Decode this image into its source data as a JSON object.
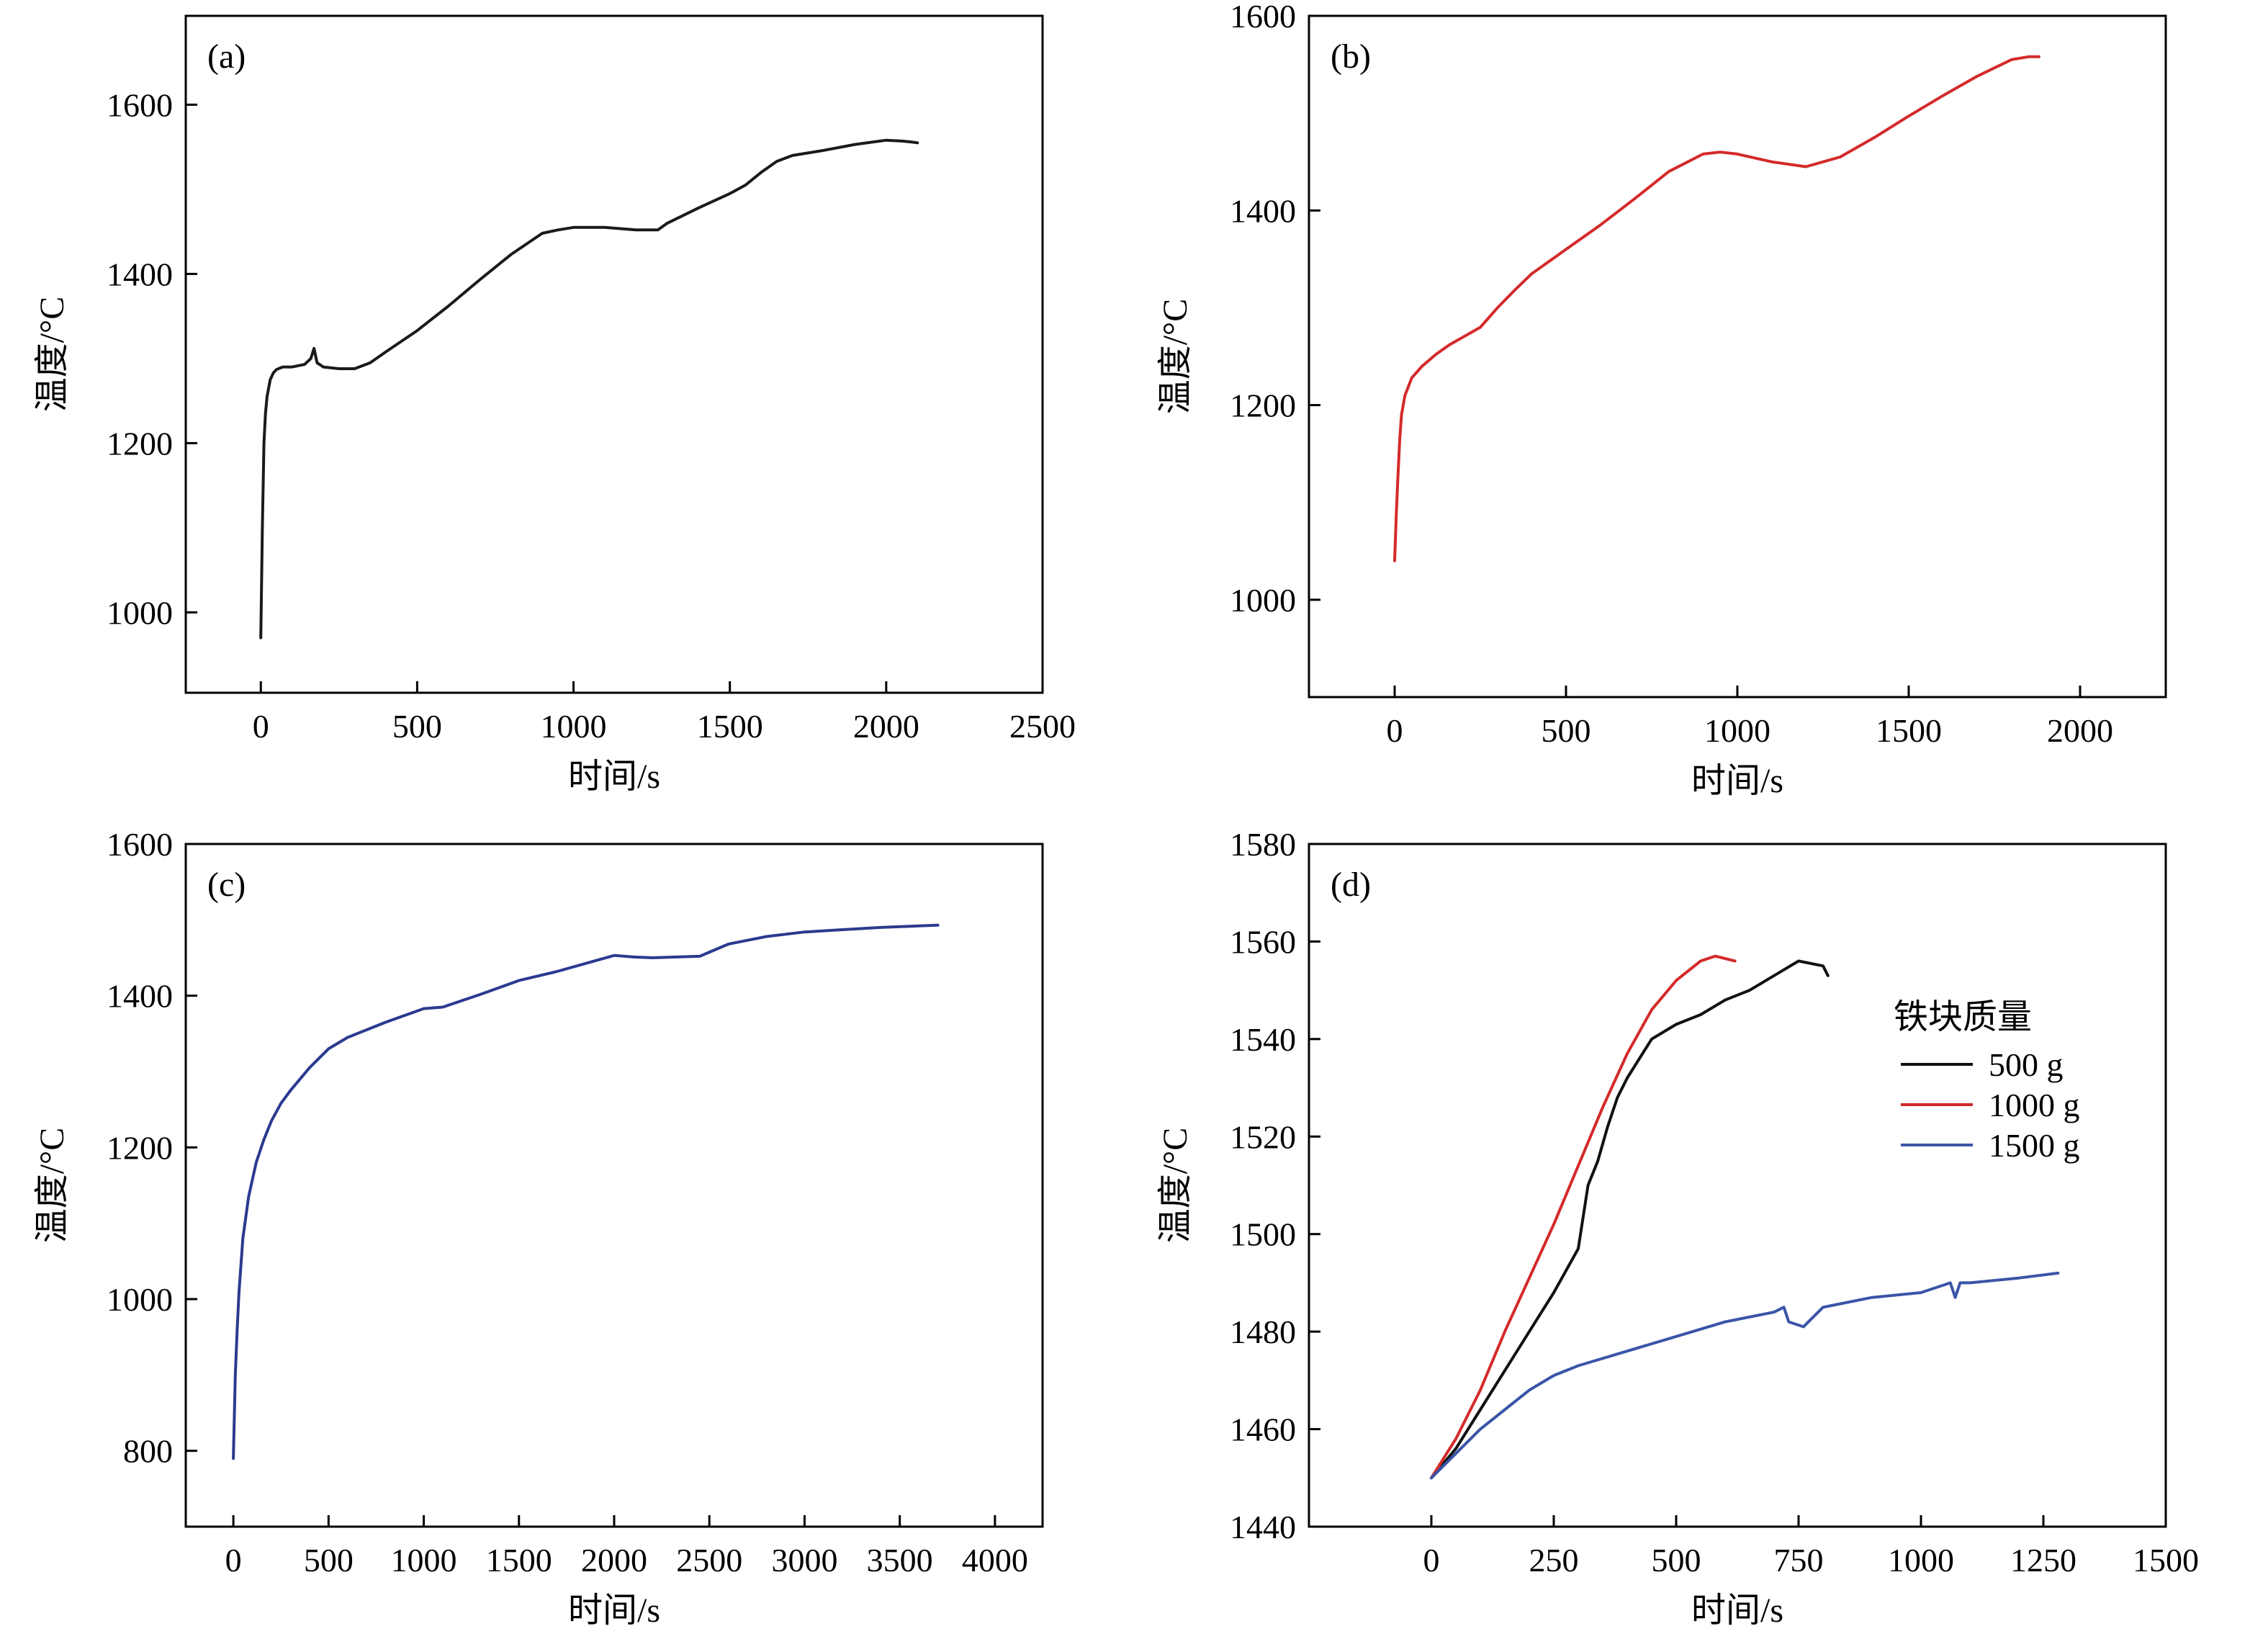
{
  "chart_data": [
    {
      "panel": "(a)",
      "type": "line",
      "xlabel": "时间/s",
      "ylabel": "温度/°C",
      "xlim": [
        -240,
        2500
      ],
      "ylim": [
        905,
        1705
      ],
      "xticks": [
        0,
        500,
        1000,
        1500,
        2000,
        2500
      ],
      "yticks": [
        1000,
        1200,
        1400,
        1600
      ],
      "series": [
        {
          "color": "#1a1a1a",
          "x": [
            0,
            5,
            10,
            15,
            20,
            30,
            40,
            50,
            70,
            100,
            140,
            160,
            170,
            180,
            200,
            250,
            300,
            350,
            400,
            500,
            600,
            700,
            800,
            900,
            950,
            1000,
            1100,
            1200,
            1270,
            1300,
            1400,
            1500,
            1550,
            1600,
            1650,
            1700,
            1800,
            1900,
            2000,
            2050,
            2080,
            2100
          ],
          "y": [
            970,
            1100,
            1200,
            1235,
            1255,
            1275,
            1283,
            1287,
            1290,
            1290,
            1293,
            1300,
            1312,
            1295,
            1290,
            1288,
            1288,
            1295,
            1308,
            1333,
            1362,
            1393,
            1423,
            1448,
            1452,
            1455,
            1455,
            1452,
            1452,
            1460,
            1478,
            1495,
            1505,
            1520,
            1533,
            1540,
            1546,
            1553,
            1558,
            1557,
            1556,
            1555
          ]
        }
      ]
    },
    {
      "panel": "(b)",
      "type": "line",
      "xlabel": "时间/s",
      "ylabel": "温度/°C",
      "xlim": [
        -250,
        2250
      ],
      "ylim": [
        900,
        1600
      ],
      "xticks": [
        0,
        500,
        1000,
        1500,
        2000
      ],
      "yticks": [
        1000,
        1200,
        1400,
        1600
      ],
      "series": [
        {
          "color": "#d42a2a",
          "x": [
            0,
            5,
            10,
            15,
            20,
            30,
            50,
            80,
            120,
            160,
            200,
            250,
            300,
            350,
            400,
            500,
            600,
            700,
            800,
            900,
            950,
            1000,
            1100,
            1200,
            1300,
            1400,
            1500,
            1600,
            1700,
            1800,
            1850,
            1880
          ],
          "y": [
            1040,
            1090,
            1130,
            1165,
            1190,
            1210,
            1228,
            1240,
            1252,
            1262,
            1270,
            1280,
            1300,
            1318,
            1335,
            1360,
            1385,
            1412,
            1440,
            1458,
            1460,
            1458,
            1450,
            1445,
            1455,
            1475,
            1497,
            1518,
            1538,
            1555,
            1558,
            1558
          ]
        }
      ]
    },
    {
      "panel": "(c)",
      "type": "line",
      "xlabel": "时间/s",
      "ylabel": "温度/°C",
      "xlim": [
        -250,
        4250
      ],
      "ylim": [
        700,
        1600
      ],
      "xticks": [
        0,
        500,
        1000,
        1500,
        2000,
        2500,
        3000,
        3500,
        4000
      ],
      "yticks": [
        800,
        1000,
        1200,
        1400,
        1600
      ],
      "series": [
        {
          "color": "#2b3a8f",
          "x": [
            0,
            10,
            20,
            30,
            50,
            80,
            120,
            160,
            200,
            250,
            300,
            400,
            500,
            600,
            800,
            1000,
            1100,
            1300,
            1500,
            1700,
            1900,
            2000,
            2100,
            2200,
            2450,
            2600,
            2800,
            3000,
            3200,
            3400,
            3600,
            3700
          ],
          "y": [
            790,
            900,
            960,
            1010,
            1080,
            1135,
            1180,
            1210,
            1235,
            1258,
            1275,
            1305,
            1330,
            1345,
            1365,
            1383,
            1385,
            1402,
            1420,
            1432,
            1446,
            1453,
            1451,
            1450,
            1452,
            1468,
            1478,
            1484,
            1487,
            1490,
            1492,
            1493
          ]
        }
      ]
    },
    {
      "panel": "(d)",
      "type": "line",
      "xlabel": "时间/s",
      "ylabel": "温度/°C",
      "xlim": [
        -250,
        1500
      ],
      "ylim": [
        1440,
        1580
      ],
      "xticks": [
        0,
        250,
        500,
        750,
        1000,
        1250,
        1500
      ],
      "yticks": [
        1440,
        1460,
        1480,
        1500,
        1520,
        1540,
        1560,
        1580
      ],
      "legend": {
        "title": "铁块质量",
        "position": "right"
      },
      "series": [
        {
          "name": "500 g",
          "color": "#111111",
          "x": [
            0,
            50,
            100,
            150,
            200,
            250,
            300,
            320,
            340,
            360,
            380,
            400,
            450,
            500,
            550,
            600,
            650,
            700,
            750,
            800,
            810
          ],
          "y": [
            1450,
            1456,
            1464,
            1472,
            1480,
            1488,
            1497,
            1510,
            1515,
            1522,
            1528,
            1532,
            1540,
            1543,
            1545,
            1548,
            1550,
            1553,
            1556,
            1555,
            1553
          ]
        },
        {
          "name": "1000 g",
          "color": "#d42a2a",
          "x": [
            0,
            50,
            100,
            150,
            200,
            250,
            300,
            350,
            400,
            450,
            500,
            550,
            580,
            620
          ],
          "y": [
            1450,
            1458,
            1468,
            1480,
            1491,
            1502,
            1514,
            1526,
            1537,
            1546,
            1552,
            1556,
            1557,
            1556
          ]
        },
        {
          "name": "1500 g",
          "color": "#3a55a8",
          "x": [
            0,
            50,
            100,
            150,
            200,
            250,
            300,
            400,
            500,
            600,
            700,
            720,
            730,
            760,
            780,
            800,
            900,
            1000,
            1060,
            1070,
            1080,
            1100,
            1200,
            1280
          ],
          "y": [
            1450,
            1455,
            1460,
            1464,
            1468,
            1471,
            1473,
            1476,
            1479,
            1482,
            1484,
            1485,
            1482,
            1481,
            1483,
            1485,
            1487,
            1488,
            1490,
            1487,
            1490,
            1490,
            1491,
            1492
          ]
        }
      ]
    }
  ]
}
